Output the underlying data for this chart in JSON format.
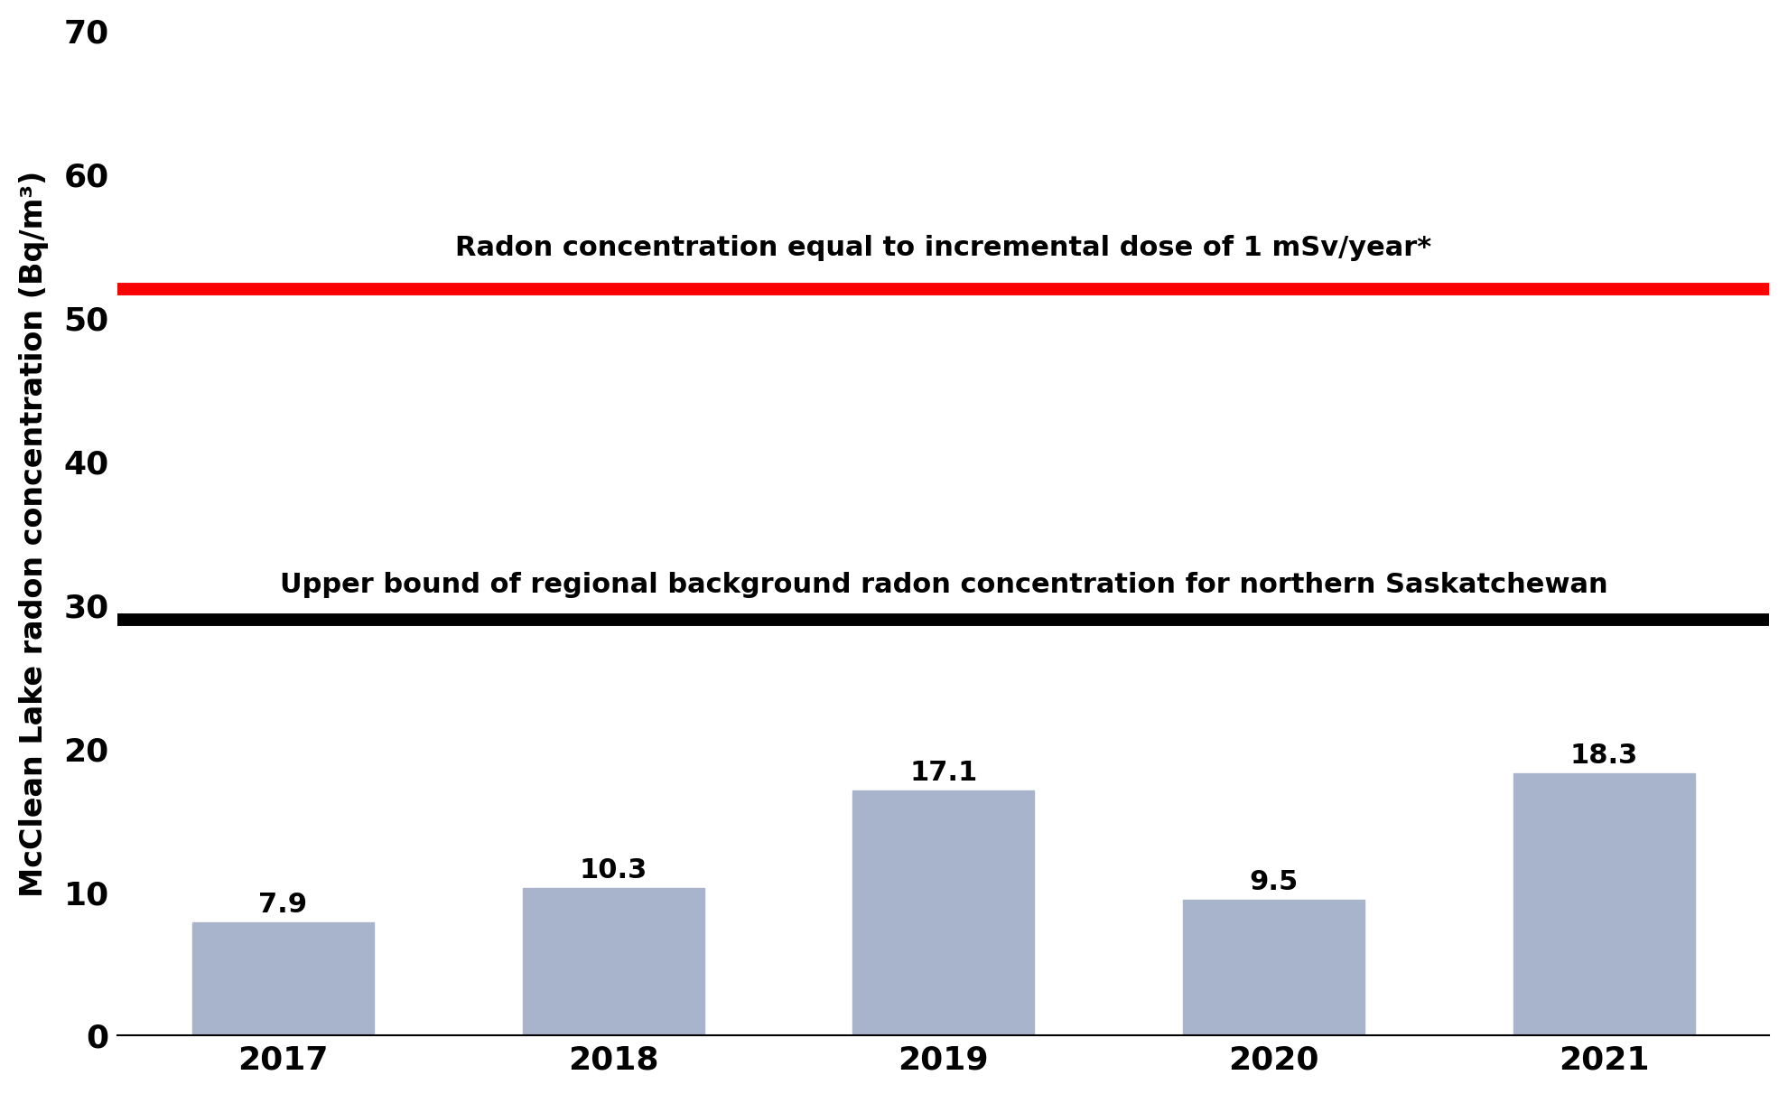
{
  "years": [
    "2017",
    "2018",
    "2019",
    "2020",
    "2021"
  ],
  "values": [
    7.9,
    10.3,
    17.1,
    9.5,
    18.3
  ],
  "bar_color": "#a8b4cc",
  "background_color": "#ffffff",
  "ylabel": "McClean Lake radon concentration (Bq/m³)",
  "ylim": [
    0,
    70
  ],
  "yticks": [
    0,
    10,
    20,
    30,
    40,
    50,
    60,
    70
  ],
  "red_line_value": 52,
  "red_line_color": "#ff0000",
  "red_line_label": "Radon concentration equal to incremental dose of 1 mSv/year*",
  "black_line_value": 29,
  "black_line_color": "#000000",
  "black_line_label": "Upper bound of regional background radon concentration for northern Saskatchewan",
  "red_line_linewidth": 10,
  "black_line_linewidth": 10,
  "bar_width": 0.55,
  "value_label_fontsize": 22,
  "axis_label_fontsize": 24,
  "tick_fontsize": 26,
  "annotation_fontsize": 22
}
